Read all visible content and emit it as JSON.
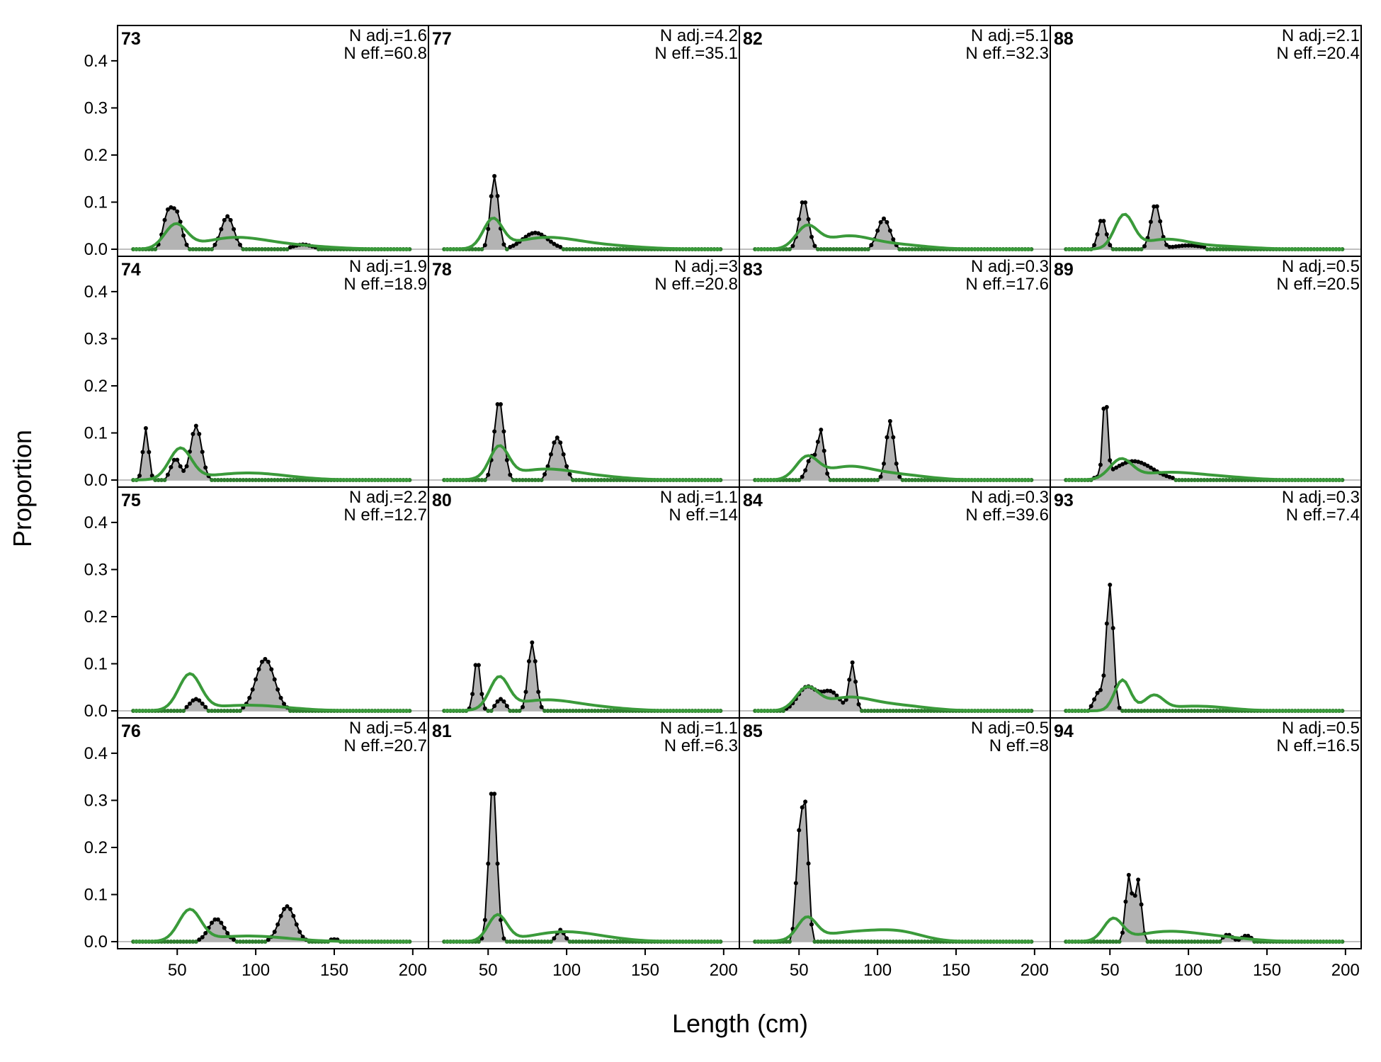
{
  "chart_data": {
    "type": "line",
    "xlabel": "Length (cm)",
    "ylabel": "Proportion",
    "xlim": [
      12,
      210
    ],
    "ylim": [
      -0.015,
      0.475
    ],
    "xticks": [
      50,
      100,
      150,
      200
    ],
    "xtick_labels": [
      "50",
      "100",
      "150",
      "200"
    ],
    "yticks": [
      0,
      0.1,
      0.2,
      0.3,
      0.4
    ],
    "ytick_labels": [
      "0.0",
      "0.1",
      "0.2",
      "0.3",
      "0.4"
    ],
    "grid": false,
    "layout": "4 rows x 4 columns, column-major, shared axes",
    "series_style": {
      "observed": {
        "color": "#000000",
        "fill": "#b3b3b3",
        "marker": "dot"
      },
      "expected": {
        "color": "#3a9a3a"
      },
      "zero_line": {
        "color": "#bfbfbf"
      }
    },
    "panels": [
      {
        "label": "73",
        "n_adj": "N adj.=1.6",
        "n_eff": "N eff.=60.8",
        "obs_peaks": [
          [
            44,
            0.075,
            3
          ],
          [
            50,
            0.07,
            3
          ],
          [
            82,
            0.07,
            4
          ],
          [
            130,
            0.01,
            6
          ]
        ],
        "exp_peaks": [
          [
            49,
            0.05,
            7
          ],
          [
            85,
            0.022,
            20
          ],
          [
            120,
            0.008,
            25
          ]
        ]
      },
      {
        "label": "74",
        "n_adj": "N adj.=1.9",
        "n_eff": "N eff.=18.9",
        "obs_peaks": [
          [
            30,
            0.11,
            1.8
          ],
          [
            49,
            0.045,
            3
          ],
          [
            62,
            0.115,
            3.5
          ]
        ],
        "exp_peaks": [
          [
            52,
            0.065,
            7
          ],
          [
            95,
            0.015,
            25
          ]
        ]
      },
      {
        "label": "75",
        "n_adj": "N adj.=2.2",
        "n_eff": "N eff.=12.7",
        "obs_peaks": [
          [
            62,
            0.025,
            4
          ],
          [
            106,
            0.11,
            6
          ]
        ],
        "exp_peaks": [
          [
            58,
            0.075,
            7
          ],
          [
            95,
            0.012,
            25
          ]
        ]
      },
      {
        "label": "76",
        "n_adj": "N adj.=5.4",
        "n_eff": "N eff.=20.7",
        "obs_peaks": [
          [
            75,
            0.048,
            5
          ],
          [
            120,
            0.075,
            5
          ],
          [
            150,
            0.005,
            4
          ]
        ],
        "exp_peaks": [
          [
            58,
            0.065,
            7
          ],
          [
            95,
            0.012,
            25
          ]
        ]
      },
      {
        "label": "77",
        "n_adj": "N adj.=4.2",
        "n_eff": "N eff.=35.1",
        "obs_peaks": [
          [
            54,
            0.155,
            2.5
          ],
          [
            80,
            0.035,
            8
          ]
        ],
        "exp_peaks": [
          [
            53,
            0.06,
            6
          ],
          [
            85,
            0.022,
            20
          ],
          [
            120,
            0.008,
            25
          ]
        ]
      },
      {
        "label": "78",
        "n_adj": "N adj.=3",
        "n_eff": "N eff.=20.8",
        "obs_peaks": [
          [
            57,
            0.17,
            3
          ],
          [
            94,
            0.09,
            4
          ]
        ],
        "exp_peaks": [
          [
            57,
            0.065,
            6
          ],
          [
            85,
            0.022,
            20
          ],
          [
            120,
            0.006,
            20
          ]
        ]
      },
      {
        "label": "80",
        "n_adj": "N adj.=1.1",
        "n_eff": "N eff.=14",
        "obs_peaks": [
          [
            43,
            0.11,
            2
          ],
          [
            58,
            0.025,
            3
          ],
          [
            78,
            0.145,
            2.5
          ]
        ],
        "exp_peaks": [
          [
            57,
            0.065,
            6
          ],
          [
            85,
            0.022,
            20
          ],
          [
            120,
            0.006,
            20
          ]
        ]
      },
      {
        "label": "81",
        "n_adj": "N adj.=1.1",
        "n_eff": "N eff.=6.3",
        "obs_peaks": [
          [
            53,
            0.34,
            2.5
          ],
          [
            96,
            0.025,
            2.5
          ]
        ],
        "exp_peaks": [
          [
            56,
            0.055,
            6
          ],
          [
            95,
            0.018,
            20
          ],
          [
            120,
            0.006,
            20
          ]
        ]
      },
      {
        "label": "82",
        "n_adj": "N adj.=5.1",
        "n_eff": "N eff.=32.3",
        "obs_peaks": [
          [
            53,
            0.105,
            3
          ],
          [
            104,
            0.065,
            4
          ]
        ],
        "exp_peaks": [
          [
            55,
            0.045,
            7
          ],
          [
            80,
            0.025,
            15
          ],
          [
            110,
            0.01,
            20
          ]
        ]
      },
      {
        "label": "83",
        "n_adj": "N adj.=0.3",
        "n_eff": "N eff.=17.6",
        "obs_peaks": [
          [
            58,
            0.05,
            3
          ],
          [
            64,
            0.1,
            2
          ],
          [
            108,
            0.125,
            2.5
          ]
        ],
        "exp_peaks": [
          [
            55,
            0.045,
            7
          ],
          [
            80,
            0.025,
            15
          ],
          [
            110,
            0.012,
            20
          ]
        ]
      },
      {
        "label": "84",
        "n_adj": "N adj.=0.3",
        "n_eff": "N eff.=39.6",
        "obs_peaks": [
          [
            55,
            0.05,
            6
          ],
          [
            70,
            0.04,
            6
          ],
          [
            84,
            0.1,
            2
          ]
        ],
        "exp_peaks": [
          [
            55,
            0.045,
            7
          ],
          [
            80,
            0.025,
            15
          ],
          [
            110,
            0.012,
            20
          ]
        ]
      },
      {
        "label": "85",
        "n_adj": "N adj.=0.5",
        "n_eff": "N eff.=8",
        "obs_peaks": [
          [
            50,
            0.2,
            2
          ],
          [
            54,
            0.27,
            2
          ]
        ],
        "exp_peaks": [
          [
            55,
            0.045,
            6
          ],
          [
            85,
            0.02,
            22
          ],
          [
            115,
            0.015,
            15
          ]
        ]
      },
      {
        "label": "88",
        "n_adj": "N adj.=2.1",
        "n_eff": "N eff.=20.4",
        "obs_peaks": [
          [
            45,
            0.065,
            2.5
          ],
          [
            79,
            0.095,
            3
          ],
          [
            100,
            0.008,
            10
          ]
        ],
        "exp_peaks": [
          [
            59,
            0.07,
            6
          ],
          [
            85,
            0.02,
            15
          ],
          [
            120,
            0.006,
            20
          ]
        ]
      },
      {
        "label": "89",
        "n_adj": "N adj.=0.5",
        "n_eff": "N eff.=20.5",
        "obs_peaks": [
          [
            47,
            0.175,
            1.5
          ],
          [
            65,
            0.04,
            12
          ]
        ],
        "exp_peaks": [
          [
            57,
            0.04,
            7
          ],
          [
            85,
            0.015,
            20
          ],
          [
            120,
            0.006,
            20
          ]
        ]
      },
      {
        "label": "93",
        "n_adj": "N adj.=0.3",
        "n_eff": "N eff.=7.4",
        "obs_peaks": [
          [
            50,
            0.265,
            2.2
          ],
          [
            43,
            0.04,
            3
          ]
        ],
        "exp_peaks": [
          [
            58,
            0.065,
            5
          ],
          [
            78,
            0.03,
            6
          ],
          [
            105,
            0.01,
            20
          ]
        ]
      },
      {
        "label": "94",
        "n_adj": "N adj.=0.5",
        "n_eff": "N eff.=16.5",
        "obs_peaks": [
          [
            62,
            0.14,
            2
          ],
          [
            68,
            0.13,
            2
          ],
          [
            125,
            0.015,
            3
          ],
          [
            137,
            0.013,
            3
          ]
        ],
        "exp_peaks": [
          [
            52,
            0.045,
            6
          ],
          [
            85,
            0.02,
            20
          ],
          [
            120,
            0.008,
            20
          ]
        ]
      }
    ]
  }
}
